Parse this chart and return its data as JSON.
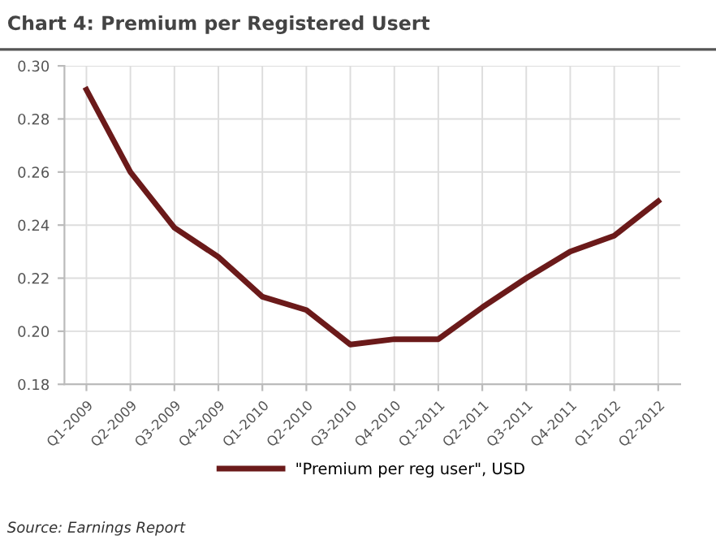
{
  "chart_data": {
    "type": "line",
    "title": "Chart 4: Premium per Registered Usert",
    "categories": [
      "Q1-2009",
      "Q2-2009",
      "Q3-2009",
      "Q4-2009",
      "Q1-2010",
      "Q2-2010",
      "Q3-2010",
      "Q4-2010",
      "Q1-2011",
      "Q2-2011",
      "Q3-2011",
      "Q4-2011",
      "Q1-2012",
      "Q2-2012"
    ],
    "series": [
      {
        "name": "\"Premium per reg user\", USD",
        "color": "#6b1a1a",
        "values": [
          0.291,
          0.26,
          0.239,
          0.228,
          0.213,
          0.208,
          0.195,
          0.197,
          0.197,
          0.209,
          0.22,
          0.23,
          0.236,
          0.249
        ]
      }
    ],
    "ylim": [
      0.18,
      0.3
    ],
    "yticks": [
      0.18,
      {
        "value": 0.2,
        "label": "0.20"
      },
      0.22,
      0.24,
      0.26,
      0.28,
      {
        "value": 0.3,
        "label": "0.30"
      }
    ],
    "grid": true,
    "legend": "bottom",
    "marker": "none",
    "line_style": "solid",
    "annotations": [
      "Source: Earnings Report"
    ]
  }
}
